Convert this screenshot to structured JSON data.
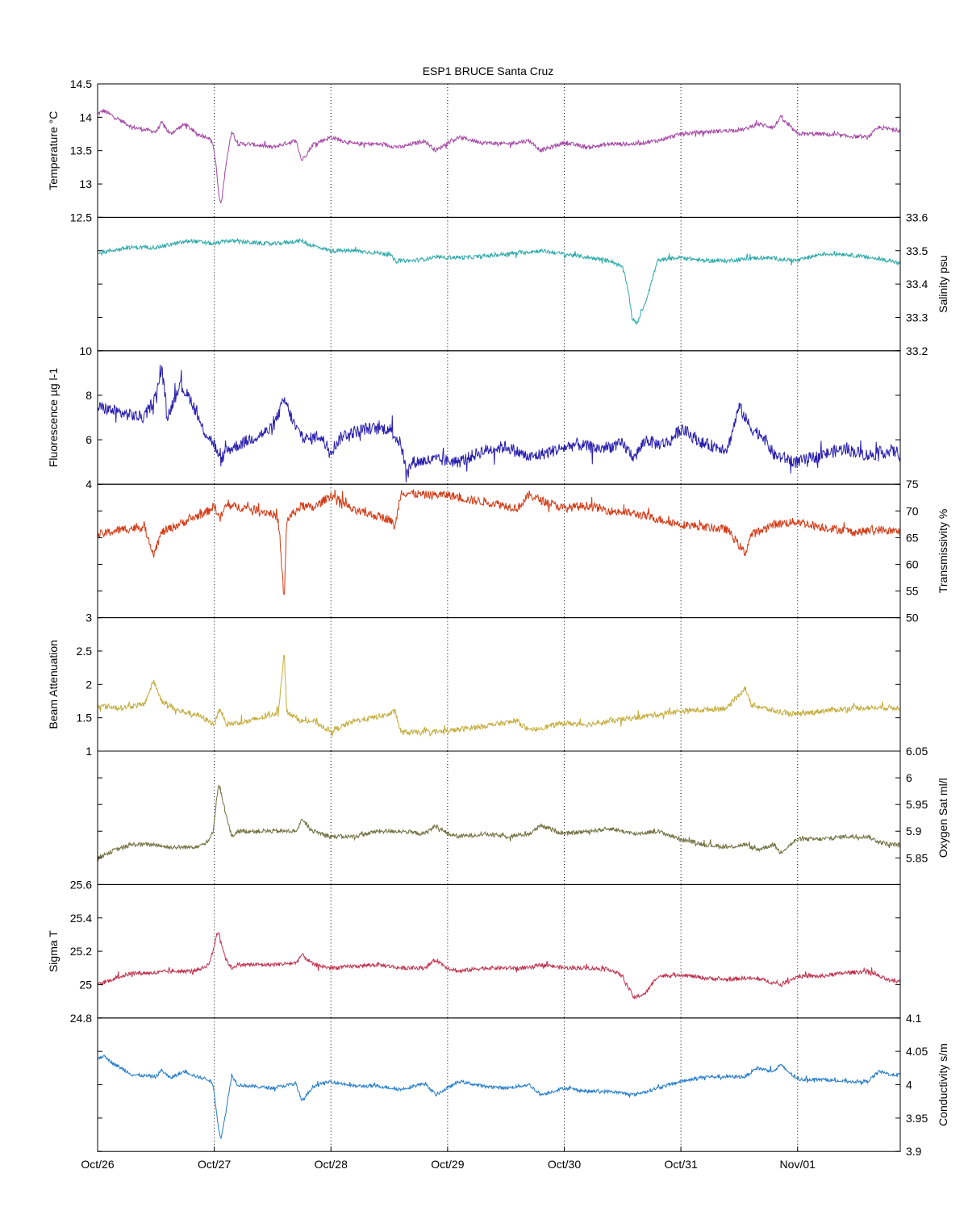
{
  "figure": {
    "title": "ESP1 BRUCE Santa Cruz",
    "x_axis": {
      "ticks": [
        0,
        1,
        2,
        3,
        4,
        5,
        6
      ],
      "tick_labels": [
        "Oct/26",
        "Oct/27",
        "Oct/28",
        "Oct/29",
        "Oct/30",
        "Oct/31",
        "Nov/01"
      ],
      "range": [
        0,
        6.88
      ],
      "units": "days",
      "grid": "vertical dotted at each day"
    }
  },
  "chart_data": [
    {
      "type": "line",
      "name": "temperature",
      "ylabel": "Temperature °C",
      "axis_side": "left",
      "color": "#a545a5",
      "ylim": [
        12.5,
        14.5
      ],
      "yticks": [
        12.5,
        13,
        13.5,
        14,
        14.5
      ],
      "ytick_labels": [
        "12.5",
        "13",
        "13.5",
        "14",
        "14.5"
      ],
      "noise": 0.03,
      "x": [
        0.0,
        0.05,
        0.15,
        0.3,
        0.5,
        0.55,
        0.62,
        0.75,
        0.85,
        0.95,
        0.99,
        1.02,
        1.04,
        1.06,
        1.1,
        1.15,
        1.2,
        1.3,
        1.5,
        1.7,
        1.75,
        1.85,
        2.0,
        2.2,
        2.4,
        2.6,
        2.8,
        2.9,
        3.0,
        3.1,
        3.3,
        3.5,
        3.7,
        3.8,
        4.0,
        4.2,
        4.4,
        4.6,
        4.8,
        5.0,
        5.2,
        5.4,
        5.55,
        5.65,
        5.8,
        5.85,
        6.0,
        6.2,
        6.4,
        6.6,
        6.7,
        6.8,
        6.88
      ],
      "y": [
        14.05,
        14.1,
        14.0,
        13.85,
        13.78,
        13.92,
        13.75,
        13.9,
        13.75,
        13.7,
        13.6,
        13.2,
        12.8,
        12.7,
        13.3,
        13.8,
        13.6,
        13.6,
        13.55,
        13.65,
        13.35,
        13.6,
        13.7,
        13.6,
        13.6,
        13.55,
        13.65,
        13.5,
        13.62,
        13.7,
        13.62,
        13.6,
        13.65,
        13.5,
        13.62,
        13.55,
        13.6,
        13.6,
        13.65,
        13.75,
        13.78,
        13.8,
        13.82,
        13.9,
        13.85,
        14.0,
        13.75,
        13.75,
        13.72,
        13.7,
        13.85,
        13.82,
        13.8
      ]
    },
    {
      "type": "line",
      "name": "salinity",
      "ylabel": "Salinity psu",
      "axis_side": "right",
      "color": "#2aa8a8",
      "ylim": [
        33.2,
        33.6
      ],
      "yticks": [
        33.2,
        33.3,
        33.4,
        33.5,
        33.6
      ],
      "ytick_labels": [
        "33.2",
        "33.3",
        "33.4",
        "33.5",
        "33.6"
      ],
      "noise": 0.006,
      "x": [
        0.0,
        0.1,
        0.3,
        0.5,
        0.8,
        1.0,
        1.1,
        1.5,
        1.75,
        1.8,
        2.0,
        2.2,
        2.5,
        2.55,
        2.7,
        2.9,
        3.2,
        3.5,
        3.8,
        4.0,
        4.2,
        4.4,
        4.5,
        4.55,
        4.58,
        4.62,
        4.7,
        4.8,
        5.0,
        5.2,
        5.4,
        5.7,
        6.0,
        6.2,
        6.4,
        6.6,
        6.8,
        6.88
      ],
      "y": [
        33.49,
        33.5,
        33.51,
        33.51,
        33.53,
        33.52,
        33.53,
        33.52,
        33.53,
        33.52,
        33.5,
        33.5,
        33.49,
        33.47,
        33.47,
        33.48,
        33.48,
        33.49,
        33.5,
        33.49,
        33.48,
        33.47,
        33.45,
        33.38,
        33.3,
        33.28,
        33.35,
        33.47,
        33.48,
        33.47,
        33.47,
        33.48,
        33.47,
        33.49,
        33.49,
        33.48,
        33.47,
        33.46
      ]
    },
    {
      "type": "line",
      "name": "fluorescence",
      "ylabel": "Fluorescence µg l-1",
      "axis_side": "left",
      "color": "#2a1fb0",
      "ylim": [
        4,
        10
      ],
      "yticks": [
        4,
        6,
        8,
        10
      ],
      "ytick_labels": [
        "4",
        "6",
        "8",
        "10"
      ],
      "noise": 0.28,
      "x": [
        0.0,
        0.2,
        0.4,
        0.5,
        0.55,
        0.6,
        0.7,
        0.8,
        0.9,
        1.0,
        1.05,
        1.1,
        1.3,
        1.5,
        1.6,
        1.7,
        1.8,
        1.9,
        2.0,
        2.1,
        2.3,
        2.5,
        2.6,
        2.65,
        2.7,
        2.9,
        3.1,
        3.3,
        3.5,
        3.7,
        3.9,
        4.1,
        4.3,
        4.5,
        4.6,
        4.7,
        4.8,
        4.9,
        5.0,
        5.2,
        5.4,
        5.5,
        5.6,
        5.7,
        5.8,
        6.0,
        6.2,
        6.4,
        6.6,
        6.8,
        6.88
      ],
      "y": [
        7.5,
        7.2,
        7.0,
        8.0,
        9.2,
        7.0,
        8.5,
        7.8,
        6.5,
        5.8,
        5.0,
        5.5,
        6.0,
        6.5,
        7.8,
        6.5,
        6.0,
        6.2,
        5.5,
        6.2,
        6.5,
        6.5,
        5.8,
        4.5,
        5.0,
        5.1,
        5.0,
        5.5,
        5.7,
        5.2,
        5.5,
        5.8,
        5.6,
        5.8,
        5.2,
        6.0,
        5.8,
        5.9,
        6.5,
        5.8,
        5.6,
        7.5,
        6.5,
        6.2,
        5.3,
        5.0,
        5.3,
        5.6,
        5.3,
        5.5,
        5.4
      ]
    },
    {
      "type": "line",
      "name": "transmissivity",
      "ylabel": "Transmissivity %",
      "axis_side": "right",
      "color": "#d43a15",
      "ylim": [
        50,
        75
      ],
      "yticks": [
        50,
        55,
        60,
        65,
        70,
        75
      ],
      "ytick_labels": [
        "50",
        "55",
        "60",
        "65",
        "70",
        "75"
      ],
      "noise": 0.8,
      "x": [
        0.0,
        0.2,
        0.4,
        0.48,
        0.55,
        0.7,
        0.85,
        0.95,
        1.0,
        1.05,
        1.1,
        1.3,
        1.5,
        1.55,
        1.6,
        1.62,
        1.65,
        1.75,
        1.85,
        2.0,
        2.2,
        2.5,
        2.55,
        2.6,
        2.8,
        3.0,
        3.2,
        3.4,
        3.6,
        3.7,
        3.8,
        4.0,
        4.2,
        4.4,
        4.6,
        4.8,
        5.0,
        5.2,
        5.4,
        5.55,
        5.6,
        5.8,
        6.0,
        6.2,
        6.5,
        6.7,
        6.88
      ],
      "y": [
        65.5,
        66.5,
        67.0,
        62.0,
        66.0,
        67.5,
        69.0,
        70.0,
        71.0,
        68.5,
        71.0,
        70.5,
        69.5,
        68.0,
        53.0,
        68.0,
        69.0,
        71.0,
        70.5,
        73.0,
        70.0,
        68.5,
        67.0,
        73.5,
        73.0,
        73.0,
        72.0,
        71.5,
        70.5,
        73.0,
        72.0,
        70.5,
        71.0,
        70.0,
        69.5,
        68.5,
        67.5,
        67.0,
        66.5,
        62.0,
        65.5,
        67.5,
        68.0,
        67.0,
        66.0,
        66.5,
        66.0
      ]
    },
    {
      "type": "line",
      "name": "beam_attenuation",
      "ylabel": "Beam Attenuation",
      "axis_side": "left",
      "color": "#c4ac3a",
      "ylim": [
        1,
        3
      ],
      "yticks": [
        1,
        1.5,
        2,
        2.5,
        3
      ],
      "ytick_labels": [
        "1",
        "1.5",
        "2",
        "2.5",
        "3"
      ],
      "noise": 0.04,
      "x": [
        0.0,
        0.2,
        0.4,
        0.48,
        0.55,
        0.7,
        0.85,
        0.95,
        1.0,
        1.05,
        1.1,
        1.3,
        1.5,
        1.55,
        1.6,
        1.62,
        1.65,
        1.75,
        1.85,
        2.0,
        2.2,
        2.5,
        2.55,
        2.6,
        2.8,
        3.0,
        3.2,
        3.4,
        3.6,
        3.7,
        3.8,
        4.0,
        4.2,
        4.4,
        4.6,
        4.8,
        5.0,
        5.2,
        5.4,
        5.55,
        5.6,
        5.8,
        6.0,
        6.2,
        6.5,
        6.7,
        6.88
      ],
      "y": [
        1.68,
        1.65,
        1.7,
        2.05,
        1.75,
        1.6,
        1.55,
        1.45,
        1.4,
        1.65,
        1.4,
        1.45,
        1.55,
        1.6,
        2.5,
        1.6,
        1.55,
        1.45,
        1.45,
        1.3,
        1.45,
        1.55,
        1.6,
        1.28,
        1.28,
        1.3,
        1.35,
        1.4,
        1.45,
        1.3,
        1.35,
        1.42,
        1.4,
        1.45,
        1.5,
        1.55,
        1.6,
        1.62,
        1.65,
        1.95,
        1.7,
        1.6,
        1.55,
        1.6,
        1.65,
        1.65,
        1.65
      ]
    },
    {
      "type": "line",
      "name": "oxygen_saturation",
      "ylabel": "Oxygen Sat ml/l",
      "axis_side": "right",
      "color": "#707040",
      "ylim": [
        5.8,
        6.05
      ],
      "yticks": [
        5.85,
        5.9,
        5.95,
        6.0,
        6.05
      ],
      "ytick_labels": [
        "5.85",
        "5.9",
        "5.95",
        "6",
        "6.05"
      ],
      "noise": 0.004,
      "x": [
        0.0,
        0.05,
        0.15,
        0.3,
        0.5,
        0.6,
        0.8,
        0.9,
        0.95,
        0.99,
        1.02,
        1.04,
        1.06,
        1.1,
        1.15,
        1.2,
        1.3,
        1.5,
        1.7,
        1.75,
        1.85,
        2.0,
        2.2,
        2.4,
        2.6,
        2.8,
        2.9,
        3.0,
        3.1,
        3.3,
        3.5,
        3.7,
        3.8,
        4.0,
        4.2,
        4.4,
        4.6,
        4.8,
        5.0,
        5.2,
        5.4,
        5.55,
        5.65,
        5.8,
        5.85,
        6.0,
        6.2,
        6.4,
        6.6,
        6.7,
        6.8,
        6.88
      ],
      "y": [
        5.85,
        5.855,
        5.865,
        5.875,
        5.875,
        5.87,
        5.87,
        5.875,
        5.88,
        5.9,
        5.96,
        5.99,
        5.97,
        5.93,
        5.89,
        5.9,
        5.9,
        5.9,
        5.9,
        5.92,
        5.9,
        5.89,
        5.89,
        5.9,
        5.9,
        5.895,
        5.91,
        5.895,
        5.89,
        5.895,
        5.89,
        5.895,
        5.91,
        5.895,
        5.9,
        5.905,
        5.895,
        5.9,
        5.885,
        5.875,
        5.87,
        5.875,
        5.865,
        5.875,
        5.86,
        5.885,
        5.885,
        5.89,
        5.89,
        5.88,
        5.875,
        5.875
      ]
    },
    {
      "type": "line",
      "name": "sigma_t",
      "ylabel": "Sigma T",
      "axis_side": "left",
      "color": "#c0304d",
      "ylim": [
        24.8,
        25.6
      ],
      "yticks": [
        24.8,
        25.0,
        25.2,
        25.4,
        25.6
      ],
      "ytick_labels": [
        "24.8",
        "25",
        "25.2",
        "25.4",
        "25.6"
      ],
      "noise": 0.012,
      "x": [
        0.0,
        0.05,
        0.15,
        0.3,
        0.5,
        0.6,
        0.8,
        0.9,
        0.95,
        0.99,
        1.02,
        1.04,
        1.06,
        1.1,
        1.15,
        1.2,
        1.3,
        1.5,
        1.7,
        1.75,
        1.85,
        2.0,
        2.2,
        2.4,
        2.6,
        2.8,
        2.9,
        3.0,
        3.1,
        3.3,
        3.5,
        3.7,
        3.8,
        4.0,
        4.2,
        4.4,
        4.5,
        4.55,
        4.6,
        4.7,
        4.8,
        5.0,
        5.2,
        5.4,
        5.55,
        5.7,
        5.85,
        6.0,
        6.2,
        6.4,
        6.6,
        6.7,
        6.8,
        6.88
      ],
      "y": [
        25.0,
        25.01,
        25.04,
        25.07,
        25.07,
        25.08,
        25.08,
        25.1,
        25.12,
        25.2,
        25.3,
        25.32,
        25.25,
        25.15,
        25.1,
        25.12,
        25.12,
        25.12,
        25.13,
        25.18,
        25.12,
        25.1,
        25.11,
        25.12,
        25.1,
        25.1,
        25.15,
        25.1,
        25.08,
        25.1,
        25.1,
        25.1,
        25.12,
        25.1,
        25.1,
        25.09,
        25.05,
        24.98,
        24.92,
        24.95,
        25.05,
        25.06,
        25.04,
        25.03,
        25.04,
        25.03,
        25.0,
        25.05,
        25.05,
        25.07,
        25.08,
        25.05,
        25.02,
        25.02
      ]
    },
    {
      "type": "line",
      "name": "conductivity",
      "ylabel": "Conductivity s/m",
      "axis_side": "right",
      "color": "#2279c9",
      "ylim": [
        3.9,
        4.1
      ],
      "yticks": [
        3.9,
        3.95,
        4.0,
        4.05,
        4.1
      ],
      "ytick_labels": [
        "3.9",
        "3.95",
        "4",
        "4.05",
        "4.1"
      ],
      "noise": 0.0025,
      "x": [
        0.0,
        0.05,
        0.15,
        0.3,
        0.5,
        0.55,
        0.62,
        0.75,
        0.85,
        0.95,
        0.99,
        1.02,
        1.04,
        1.06,
        1.1,
        1.15,
        1.2,
        1.3,
        1.5,
        1.7,
        1.75,
        1.85,
        2.0,
        2.2,
        2.4,
        2.6,
        2.8,
        2.9,
        3.0,
        3.1,
        3.3,
        3.5,
        3.7,
        3.8,
        4.0,
        4.2,
        4.4,
        4.6,
        4.8,
        5.0,
        5.2,
        5.4,
        5.55,
        5.65,
        5.8,
        5.85,
        6.0,
        6.2,
        6.4,
        6.6,
        6.7,
        6.8,
        6.88
      ],
      "y": [
        4.04,
        4.043,
        4.03,
        4.015,
        4.012,
        4.022,
        4.01,
        4.02,
        4.012,
        4.008,
        4.0,
        3.96,
        3.93,
        3.92,
        3.96,
        4.015,
        4.0,
        3.998,
        3.995,
        4.002,
        3.975,
        3.998,
        4.005,
        3.998,
        3.998,
        3.993,
        4.002,
        3.985,
        3.995,
        4.005,
        3.998,
        3.995,
        4.0,
        3.985,
        3.995,
        3.99,
        3.99,
        3.985,
        3.995,
        4.005,
        4.012,
        4.012,
        4.012,
        4.025,
        4.02,
        4.03,
        4.008,
        4.008,
        4.005,
        4.005,
        4.02,
        4.015,
        4.015
      ]
    }
  ]
}
